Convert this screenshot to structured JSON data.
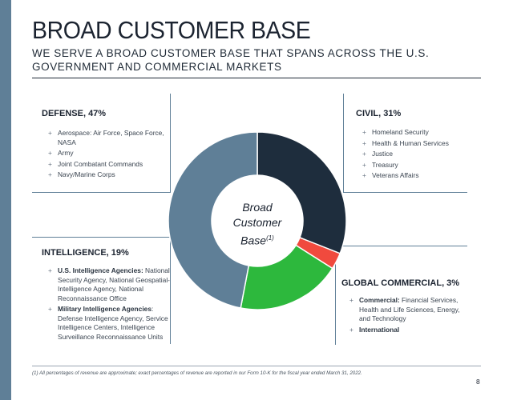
{
  "slide": {
    "title": "BROAD CUSTOMER BASE",
    "subtitle": "WE SERVE A BROAD CUSTOMER BASE THAT SPANS ACROSS THE U.S. GOVERNMENT AND COMMERCIAL MARKETS",
    "footnote": "(1)  All percentages of revenue are approximate; exact percentages of revenue are reported in our Form 10-K for the fiscal year ended March 31, 2022.",
    "page_number": "8"
  },
  "center": {
    "line1": "Broad",
    "line2": "Customer",
    "line3": "Base",
    "superscript": "(1)"
  },
  "segments": {
    "defense": {
      "title": "DEFENSE, 47%",
      "items": [
        {
          "text": "Aerospace: Air Force, Space Force, NASA"
        },
        {
          "text": "Army"
        },
        {
          "text": "Joint Combatant Commands"
        },
        {
          "text": "Navy/Marine Corps"
        }
      ]
    },
    "civil": {
      "title": "CIVIL, 31%",
      "items": [
        {
          "text": "Homeland Security"
        },
        {
          "text": "Health & Human Services"
        },
        {
          "text": "Justice"
        },
        {
          "text": "Treasury"
        },
        {
          "text": "Veterans Affairs"
        }
      ]
    },
    "intelligence": {
      "title": "INTELLIGENCE, 19%",
      "items": [
        {
          "label": "U.S. Intelligence Agencies:",
          "text": " National Security Agency, National Geospatial-Intelligence Agency, National Reconnaissance Office"
        },
        {
          "label": "Military Intelligence Agencies",
          "text": ": Defense Intelligence Agency, Service Intelligence Centers, Intelligence Surveillance Reconnaissance Units"
        }
      ]
    },
    "global_commercial": {
      "title": "GLOBAL COMMERCIAL, 3%",
      "items": [
        {
          "label": "Commercial:",
          "text": " Financial Services, Health and Life Sciences, Energy, and Technology"
        },
        {
          "label": "International",
          "text": ""
        }
      ]
    }
  },
  "chart_data": {
    "type": "pie",
    "subtype": "donut",
    "categories": [
      "Civil",
      "Global Commercial",
      "Intelligence",
      "Defense"
    ],
    "values": [
      31,
      3,
      19,
      47
    ],
    "unit": "% of revenue",
    "colors": [
      "#1e2d3d",
      "#f04a3e",
      "#2db83d",
      "#5f7f97"
    ],
    "start_angle": "12 o'clock",
    "direction": "clockwise",
    "legend": "none"
  },
  "colors": {
    "accent": "#5f7f97",
    "title_text": "#1b2330"
  }
}
